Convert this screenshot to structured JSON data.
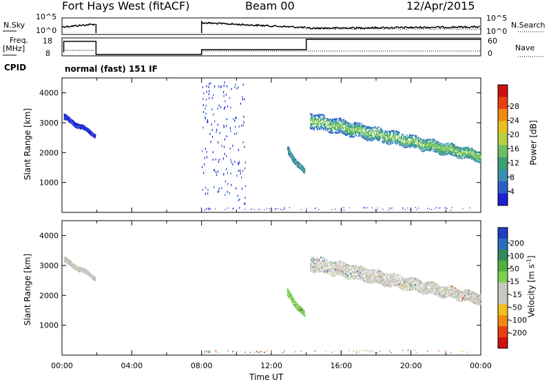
{
  "header": {
    "station": "Fort Hays West (fitACF)",
    "beam": "Beam 00",
    "date": "12/Apr/2015"
  },
  "aux": {
    "nsky_label": "N.Sky",
    "nsearch_label": "N.Search",
    "freq_label_1": "Freq.",
    "freq_label_2": "[MHz]",
    "nave_label": "Nave",
    "cpid_label": "CPID",
    "cpid_value": "normal (fast) 151 IF",
    "noise_ticks": [
      "10^5",
      "10^0"
    ],
    "noise_ticks_right": [
      "10^5",
      "10^0"
    ],
    "freq_ticks": [
      "18",
      "8"
    ],
    "nave_ticks": [
      "60",
      "0"
    ]
  },
  "chart_data": [
    {
      "type": "heatmap",
      "name": "power",
      "ylabel": "Slant Range [km]",
      "ylim": [
        0,
        4500
      ],
      "yticks": [
        1000,
        2000,
        3000,
        4000
      ],
      "xlim": [
        0,
        24
      ],
      "colorbar": {
        "label": "Power [dB]",
        "ticks": [
          4,
          8,
          12,
          16,
          20,
          24,
          28
        ],
        "colors": [
          "#1f1fd6",
          "#2a5fc8",
          "#3a8fb0",
          "#3aa070",
          "#6cc060",
          "#b5d040",
          "#e8c020",
          "#f08a10",
          "#e84010",
          "#d01010"
        ]
      },
      "echo_regions": [
        {
          "t_start": 0.1,
          "t_end": 1.9,
          "range_start": 3200,
          "range_end": 2600,
          "band_km": 180,
          "level": 1
        },
        {
          "t_start": 8.0,
          "t_end": 10.5,
          "range_start": 4400,
          "range_end": 300,
          "band_km": 0,
          "level": 0
        },
        {
          "t_start": 12.9,
          "t_end": 13.9,
          "range_start": 2100,
          "range_end": 1350,
          "band_km": 250,
          "level": 3
        },
        {
          "t_start": 14.2,
          "t_end": 24.0,
          "range_start": 3100,
          "range_end": 1900,
          "band_km": 520,
          "level": 4
        }
      ]
    },
    {
      "type": "heatmap",
      "name": "velocity",
      "ylabel": "Slant Range [km]",
      "ylim": [
        0,
        4500
      ],
      "yticks": [
        1000,
        2000,
        3000,
        4000
      ],
      "xlim": [
        0,
        24
      ],
      "xticks": [
        "00:00",
        "04:00",
        "08:00",
        "12:00",
        "16:00",
        "20:00",
        "00:00"
      ],
      "xlabel": "Time UT",
      "colorbar": {
        "label": "Velocity [m s^-1]",
        "ticks": [
          200,
          100,
          50,
          15,
          -15,
          -50,
          -100,
          -200
        ],
        "colors": [
          "#2040c0",
          "#2a6cc0",
          "#2e8a5a",
          "#50b040",
          "#7ad050",
          "#c8c8c0",
          "#c8c8c0",
          "#f0c020",
          "#f08a10",
          "#e84010",
          "#d01010"
        ]
      },
      "echo_regions": [
        {
          "t_start": 0.1,
          "t_end": 1.9,
          "range_start": 3200,
          "range_end": 2600,
          "band_km": 180,
          "color": "#c8c8c0"
        },
        {
          "t_start": 12.9,
          "t_end": 13.9,
          "range_start": 2100,
          "range_end": 1350,
          "band_km": 250,
          "color": "#7ad050"
        },
        {
          "t_start": 14.2,
          "t_end": 24.0,
          "range_start": 3100,
          "range_end": 1900,
          "band_km": 520,
          "color": "#c8c8c0"
        }
      ]
    }
  ]
}
